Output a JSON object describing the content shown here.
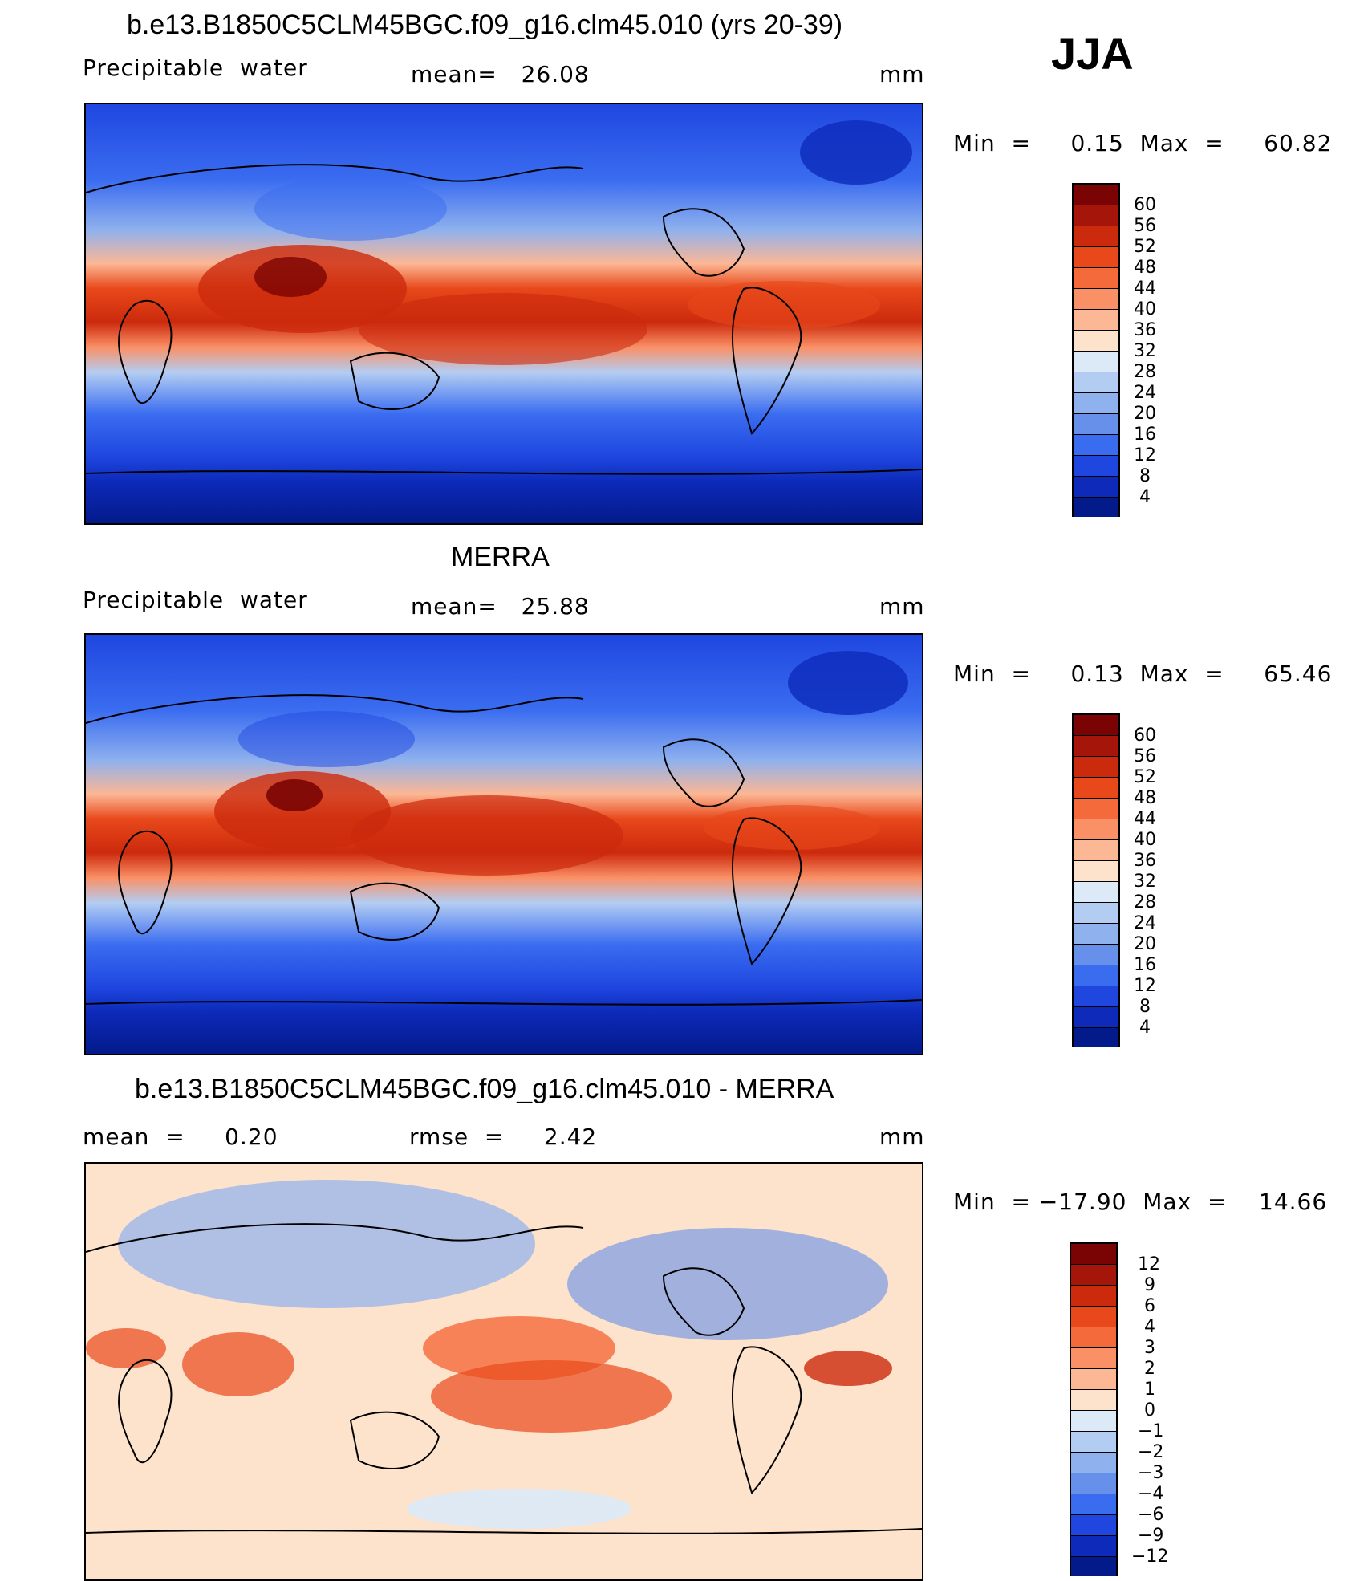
{
  "header": {
    "season": "JJA"
  },
  "chart_data": [
    {
      "type": "heatmap",
      "title": "b.e13.B1850C5CLM45BGC.f09_g16.clm45.010 (yrs 20-39)",
      "left_label": "Precipitable  water",
      "center_label": "mean=   26.08",
      "units": "mm",
      "minmax": "Min  =     0.15  Max  =     60.82",
      "min": 0.15,
      "max": 60.82,
      "mean": 26.08,
      "colorbar": {
        "levels": [
          "60",
          "56",
          "52",
          "48",
          "44",
          "40",
          "36",
          "32",
          "28",
          "24",
          "20",
          "16",
          "12",
          "8",
          "4"
        ],
        "colors": [
          "#7a0403",
          "#a6150a",
          "#cc2a0d",
          "#e8481a",
          "#f56a3a",
          "#fa9066",
          "#fcb795",
          "#fde2cc",
          "#dceaf8",
          "#b3cdf2",
          "#8fb1ee",
          "#6690ea",
          "#3a6cf0",
          "#1f47e0",
          "#0d2aba",
          "#031a8a"
        ]
      }
    },
    {
      "type": "heatmap",
      "title": "MERRA",
      "left_label": "Precipitable  water",
      "center_label": "mean=   25.88",
      "units": "mm",
      "minmax": "Min  =     0.13  Max  =     65.46",
      "min": 0.13,
      "max": 65.46,
      "mean": 25.88,
      "colorbar": {
        "levels": [
          "60",
          "56",
          "52",
          "48",
          "44",
          "40",
          "36",
          "32",
          "28",
          "24",
          "20",
          "16",
          "12",
          "8",
          "4"
        ],
        "colors": [
          "#7a0403",
          "#a6150a",
          "#cc2a0d",
          "#e8481a",
          "#f56a3a",
          "#fa9066",
          "#fcb795",
          "#fde2cc",
          "#dceaf8",
          "#b3cdf2",
          "#8fb1ee",
          "#6690ea",
          "#3a6cf0",
          "#1f47e0",
          "#0d2aba",
          "#031a8a"
        ]
      }
    },
    {
      "type": "heatmap",
      "title": "b.e13.B1850C5CLM45BGC.f09_g16.clm45.010 - MERRA",
      "left_label": "mean  =     0.20",
      "center_label": "rmse  =     2.42",
      "units": "mm",
      "minmax": "Min  = −17.90  Max  =    14.66",
      "min": -17.9,
      "max": 14.66,
      "mean": 0.2,
      "rmse": 2.42,
      "colorbar": {
        "levels": [
          "12",
          "9",
          "6",
          "4",
          "3",
          "2",
          "1",
          "0",
          "−1",
          "−2",
          "−3",
          "−4",
          "−6",
          "−9",
          "−12"
        ],
        "colors": [
          "#7a0403",
          "#a6150a",
          "#cc2a0d",
          "#e8481a",
          "#f56a3a",
          "#fa9066",
          "#fcb795",
          "#fde2cc",
          "#dceaf8",
          "#b3cdf2",
          "#8fb1ee",
          "#6690ea",
          "#3a6cf0",
          "#1f47e0",
          "#0d2aba",
          "#031a8a"
        ]
      }
    }
  ]
}
